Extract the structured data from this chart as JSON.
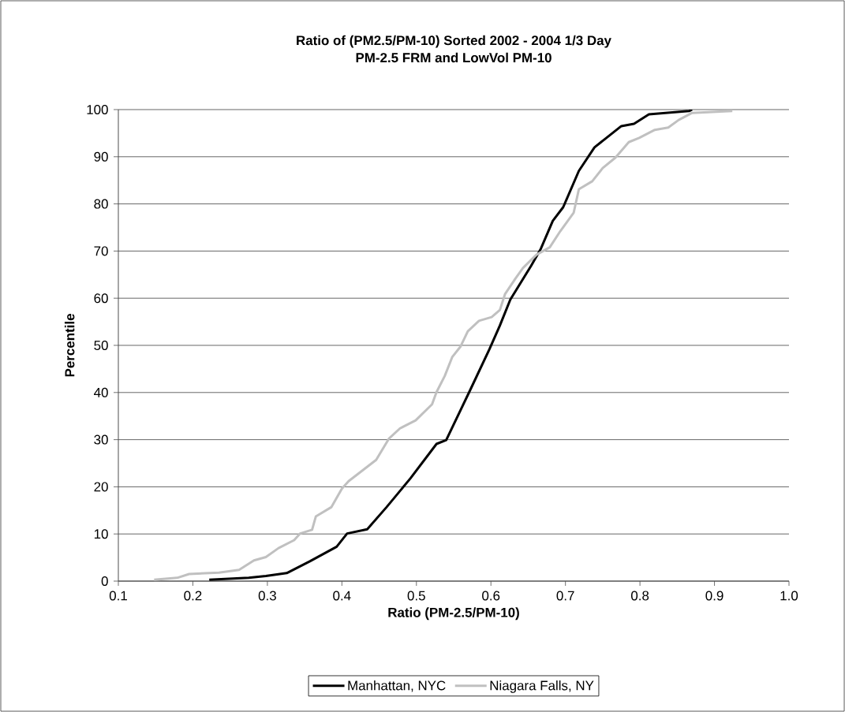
{
  "chart_data": {
    "type": "line",
    "title": "Ratio of  (PM2.5/PM-10)   Sorted 2002 - 2004 1/3 Day",
    "subtitle": "PM-2.5 FRM and LowVol PM-10",
    "xlabel": "Ratio (PM-2.5/PM-10)",
    "ylabel": "Percentile",
    "xlim": [
      0.1,
      1.0
    ],
    "xticks": [
      {
        "value": 0.1,
        "label": "0.1"
      },
      {
        "value": 0.2,
        "label": "0.2"
      },
      {
        "value": 0.3,
        "label": "0.3"
      },
      {
        "value": 0.4,
        "label": "0.4"
      },
      {
        "value": 0.5,
        "label": "0.5"
      },
      {
        "value": 0.6,
        "label": "0.6"
      },
      {
        "value": 0.7,
        "label": "0.7"
      },
      {
        "value": 0.8,
        "label": "0.8"
      },
      {
        "value": 0.9,
        "label": "0.9"
      },
      {
        "value": 1.0,
        "label": "1.0"
      }
    ],
    "ylim": [
      0,
      100
    ],
    "yticks": [
      0,
      10,
      20,
      30,
      40,
      50,
      60,
      70,
      80,
      90,
      100
    ],
    "grid": "y",
    "legend": "bottom",
    "marker": "none",
    "line_style": "solid",
    "series": [
      {
        "name": "Manhattan, NYC",
        "color": "#000000",
        "x": [
          0.222,
          0.275,
          0.298,
          0.326,
          0.357,
          0.393,
          0.407,
          0.434,
          0.46,
          0.492,
          0.527,
          0.54,
          0.573,
          0.598,
          0.612,
          0.626,
          0.654,
          0.667,
          0.683,
          0.697,
          0.718,
          0.739,
          0.775,
          0.792,
          0.812,
          0.866,
          0.87
        ],
        "values": [
          0.3,
          0.7,
          1.1,
          1.7,
          4.2,
          7.3,
          10.1,
          11.0,
          15.7,
          21.8,
          29.1,
          29.9,
          40.8,
          49.2,
          54.2,
          59.7,
          66.9,
          70.5,
          76.4,
          79.3,
          87.0,
          92.0,
          96.5,
          97.0,
          99.0,
          99.7,
          100
        ]
      },
      {
        "name": "Niagara Falls, NY",
        "color": "#c0c0c0",
        "x": [
          0.148,
          0.179,
          0.195,
          0.235,
          0.262,
          0.282,
          0.298,
          0.315,
          0.336,
          0.344,
          0.36,
          0.365,
          0.386,
          0.4,
          0.409,
          0.446,
          0.463,
          0.478,
          0.499,
          0.521,
          0.527,
          0.538,
          0.548,
          0.559,
          0.569,
          0.584,
          0.601,
          0.612,
          0.619,
          0.633,
          0.643,
          0.661,
          0.679,
          0.693,
          0.711,
          0.718,
          0.736,
          0.75,
          0.767,
          0.785,
          0.799,
          0.82,
          0.838,
          0.852,
          0.87,
          0.924
        ],
        "values": [
          0.3,
          0.7,
          1.5,
          1.8,
          2.4,
          4.4,
          5.1,
          7.0,
          8.7,
          10.1,
          10.9,
          13.7,
          15.7,
          19.6,
          21.2,
          25.7,
          30.2,
          32.4,
          34.1,
          37.5,
          40.1,
          43.5,
          47.5,
          49.7,
          53.0,
          55.2,
          56.0,
          57.5,
          60.9,
          64.2,
          66.4,
          69.2,
          70.8,
          74.2,
          78.1,
          83.1,
          84.8,
          87.6,
          89.8,
          93.1,
          94.0,
          95.7,
          96.2,
          97.8,
          99.3,
          99.7
        ]
      }
    ]
  }
}
